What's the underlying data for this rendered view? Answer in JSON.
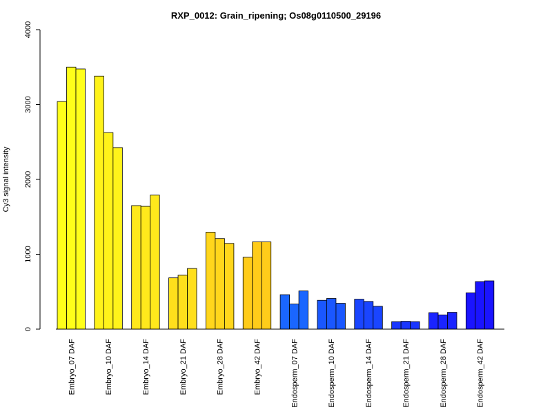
{
  "chart_data": {
    "type": "bar",
    "title": "RXP_0012: Grain_ripening; Os08g0110500_29196",
    "xlabel": "",
    "ylabel": "Cy3 signal intensity",
    "ylim": [
      0,
      4000
    ],
    "yticks": [
      0,
      1000,
      2000,
      3000,
      4000
    ],
    "grid": false,
    "legend": "none",
    "replicates_per_group": 3,
    "groups": [
      {
        "label": "Embryo_07 DAF",
        "color": "#FFFF1A",
        "values": [
          3040,
          3500,
          3475
        ]
      },
      {
        "label": "Embryo_10 DAF",
        "color": "#FFF31A",
        "values": [
          3380,
          2625,
          2425
        ]
      },
      {
        "label": "Embryo_14 DAF",
        "color": "#FFE91C",
        "values": [
          1650,
          1640,
          1790
        ]
      },
      {
        "label": "Embryo_21 DAF",
        "color": "#FFDF1C",
        "values": [
          685,
          720,
          810
        ]
      },
      {
        "label": "Embryo_28 DAF",
        "color": "#FFD61C",
        "values": [
          1295,
          1210,
          1145
        ]
      },
      {
        "label": "Embryo_42 DAF",
        "color": "#FFCC1A",
        "values": [
          960,
          1165,
          1165
        ]
      },
      {
        "label": "Endosperm_07 DAF",
        "color": "#1A66FF",
        "values": [
          460,
          335,
          510
        ]
      },
      {
        "label": "Endosperm_10 DAF",
        "color": "#1A57FF",
        "values": [
          385,
          410,
          345
        ]
      },
      {
        "label": "Endosperm_14 DAF",
        "color": "#1A45FF",
        "values": [
          400,
          370,
          305
        ]
      },
      {
        "label": "Endosperm_21 DAF",
        "color": "#1A36FF",
        "values": [
          100,
          105,
          100
        ]
      },
      {
        "label": "Endosperm_28 DAF",
        "color": "#1A24FF",
        "values": [
          220,
          190,
          225
        ]
      },
      {
        "label": "Endosperm_42 DAF",
        "color": "#1A14FF",
        "values": [
          485,
          635,
          645
        ]
      }
    ]
  }
}
